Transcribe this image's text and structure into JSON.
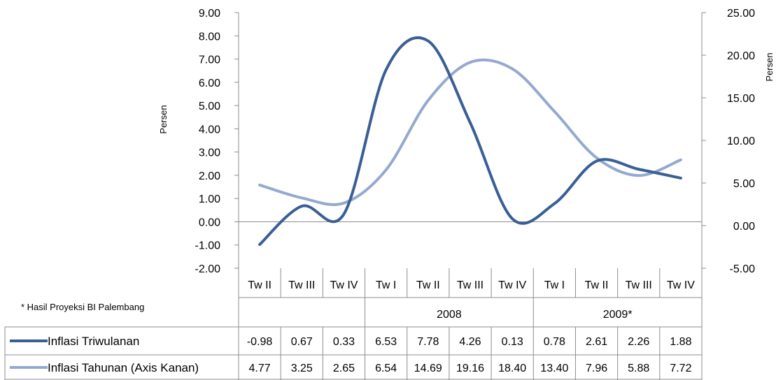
{
  "chart_data": {
    "type": "line",
    "categories": [
      "Tw II",
      "Tw III",
      "Tw IV",
      "Tw I",
      "Tw II",
      "Tw III",
      "Tw IV",
      "Tw I",
      "Tw II",
      "Tw III",
      "Tw IV"
    ],
    "year_groups": [
      {
        "label": "",
        "span": 3
      },
      {
        "label": "2008",
        "span": 4
      },
      {
        "label": "2009*",
        "span": 4
      }
    ],
    "left_axis": {
      "label": "Persen",
      "ylim": [
        -2,
        9
      ],
      "ticks": [
        "9.00",
        "8.00",
        "7.00",
        "6.00",
        "5.00",
        "4.00",
        "3.00",
        "2.00",
        "1.00",
        "0.00",
        "-1.00",
        "-2.00"
      ]
    },
    "right_axis": {
      "label": "Persen",
      "ylim": [
        -5,
        25
      ],
      "ticks": [
        "25.00",
        "20.00",
        "15.00",
        "10.00",
        "5.00",
        "0.00",
        "-5.00"
      ]
    },
    "series": [
      {
        "name": "Inflasi Triwulanan",
        "axis": "left",
        "color": "#3a5f95",
        "values": [
          -0.98,
          0.67,
          0.33,
          6.53,
          7.78,
          4.26,
          0.13,
          0.78,
          2.61,
          2.26,
          1.88
        ],
        "labels": [
          "-0.98",
          "0.67",
          "0.33",
          "6.53",
          "7.78",
          "4.26",
          "0.13",
          "0.78",
          "2.61",
          "2.26",
          "1.88"
        ]
      },
      {
        "name": "Inflasi Tahunan (Axis Kanan)",
        "axis": "right",
        "color": "#95a9cf",
        "values": [
          4.77,
          3.25,
          2.65,
          6.54,
          14.69,
          19.16,
          18.4,
          13.4,
          7.96,
          5.88,
          7.72
        ],
        "labels": [
          "4.77",
          "3.25",
          "2.65",
          "6.54",
          "14.69",
          "19.16",
          "18.40",
          "13.40",
          "7.96",
          "5.88",
          "7.72"
        ]
      }
    ],
    "footnote": "* Hasil Proyeksi BI Palembang"
  }
}
